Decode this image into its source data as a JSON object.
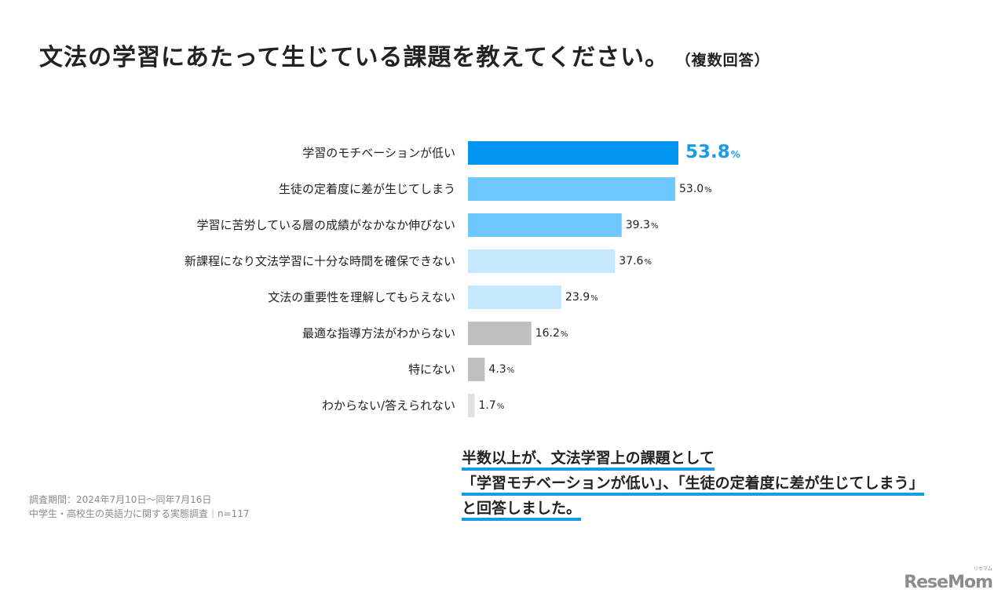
{
  "title": "文法の学習にあたって生じている課題を教えてください。",
  "subtitle": "（複数回答）",
  "chart_data": {
    "type": "bar",
    "orientation": "horizontal",
    "categories": [
      "学習のモチベーションが低い",
      "生徒の定着度に差が生じてしまう",
      "学習に苦労している層の成績がなかなか伸びない",
      "新課程になり文法学習に十分な時間を確保できない",
      "文法の重要性を理解してもらえない",
      "最適な指導方法がわからない",
      "特にない",
      "わからない/答えられない"
    ],
    "values": [
      53.8,
      53.0,
      39.3,
      37.6,
      23.9,
      16.2,
      4.3,
      1.7
    ],
    "value_labels": [
      "53.8",
      "53.0",
      "39.3",
      "37.6",
      "23.9",
      "16.2",
      "4.3",
      "1.7"
    ],
    "unit": "%",
    "colors": [
      "#0096f0",
      "#6ec8ff",
      "#6ec8ff",
      "#c6e8ff",
      "#c6e8ff",
      "#bfbfbf",
      "#bfbfbf",
      "#e0e0e0"
    ],
    "highlight_color": "#1a9bea",
    "xlim": [
      0,
      53.8
    ]
  },
  "footnote": {
    "line1": "調査期間：2024年7月10日～同年7月16日",
    "line2": "中学生・高校生の英語力に関する実態調査｜n=117"
  },
  "summary": {
    "line1": "半数以上が、文法学習上の課題として",
    "line2": "「学習モチベーションが低い」、「生徒の定着度に差が生じてしまう」",
    "line3": "と回答しました。"
  },
  "logo": {
    "text": "ReseMom",
    "ruby": "リセマム"
  }
}
